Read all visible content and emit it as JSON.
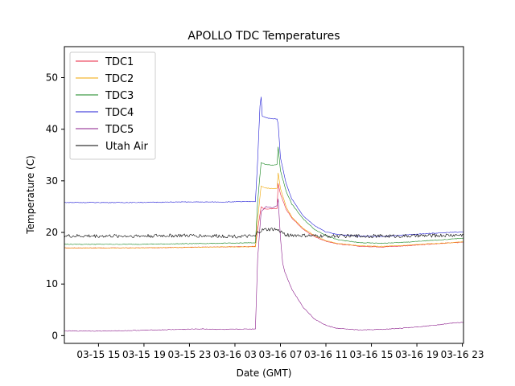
{
  "chart_data": {
    "type": "line",
    "title": "APOLLO TDC Temperatures",
    "xlabel": "Date (GMT)",
    "ylabel": "Temperature (C)",
    "x_unit": "hours since 03-15 12:00 GMT",
    "xlim": [
      0,
      35.1
    ],
    "ylim": [
      -1.5,
      56
    ],
    "xticks": [
      {
        "label": "03-15 15",
        "x": 3
      },
      {
        "label": "03-15 19",
        "x": 7
      },
      {
        "label": "03-15 23",
        "x": 11
      },
      {
        "label": "03-16 03",
        "x": 15
      },
      {
        "label": "03-16 07",
        "x": 19
      },
      {
        "label": "03-16 11",
        "x": 23
      },
      {
        "label": "03-16 15",
        "x": 27
      },
      {
        "label": "03-16 19",
        "x": 31
      },
      {
        "label": "03-16 23",
        "x": 35
      }
    ],
    "yticks": [
      0,
      10,
      20,
      30,
      40,
      50
    ],
    "grid": false,
    "legend_position": "top-left",
    "series": [
      {
        "name": "TDC1",
        "color": "#e8233f",
        "lw": 0.6,
        "points": [
          [
            0,
            17.0
          ],
          [
            6,
            17.0
          ],
          [
            10,
            17.1
          ],
          [
            14,
            17.2
          ],
          [
            16.8,
            17.3
          ],
          [
            17.0,
            20.5
          ],
          [
            17.3,
            25.0
          ],
          [
            17.6,
            24.5
          ],
          [
            18.3,
            24.6
          ],
          [
            18.7,
            24.6
          ],
          [
            18.8,
            29.5
          ],
          [
            19.0,
            27.5
          ],
          [
            19.5,
            24.5
          ],
          [
            20,
            22.8
          ],
          [
            21,
            20.6
          ],
          [
            22,
            19.2
          ],
          [
            23,
            18.3
          ],
          [
            24,
            17.8
          ],
          [
            26,
            17.3
          ],
          [
            28,
            17.2
          ],
          [
            30,
            17.4
          ],
          [
            32,
            17.7
          ],
          [
            34,
            18.0
          ],
          [
            35.1,
            18.1
          ]
        ]
      },
      {
        "name": "TDC2",
        "color": "#f0a500",
        "lw": 0.6,
        "points": [
          [
            0,
            17.0
          ],
          [
            6,
            17.0
          ],
          [
            10,
            17.1
          ],
          [
            14,
            17.2
          ],
          [
            16.8,
            17.2
          ],
          [
            17.0,
            22.5
          ],
          [
            17.3,
            29.0
          ],
          [
            17.7,
            28.6
          ],
          [
            18.3,
            28.5
          ],
          [
            18.7,
            28.6
          ],
          [
            18.8,
            31.5
          ],
          [
            19.0,
            28.5
          ],
          [
            19.5,
            25.0
          ],
          [
            20,
            23.0
          ],
          [
            21,
            20.8
          ],
          [
            22,
            19.4
          ],
          [
            23,
            18.4
          ],
          [
            24,
            17.9
          ],
          [
            26,
            17.4
          ],
          [
            28,
            17.3
          ],
          [
            30,
            17.5
          ],
          [
            32,
            17.8
          ],
          [
            34,
            18.0
          ],
          [
            35.1,
            18.2
          ]
        ]
      },
      {
        "name": "TDC3",
        "color": "#12831b",
        "lw": 0.6,
        "points": [
          [
            0,
            17.7
          ],
          [
            6,
            17.7
          ],
          [
            10,
            17.8
          ],
          [
            14,
            17.9
          ],
          [
            16.8,
            18.0
          ],
          [
            17.0,
            26.0
          ],
          [
            17.3,
            33.5
          ],
          [
            17.7,
            33.2
          ],
          [
            18.3,
            33.0
          ],
          [
            18.7,
            33.2
          ],
          [
            18.8,
            36.5
          ],
          [
            19.0,
            32.0
          ],
          [
            19.5,
            28.0
          ],
          [
            20,
            25.5
          ],
          [
            21,
            22.6
          ],
          [
            22,
            20.6
          ],
          [
            23,
            19.4
          ],
          [
            24,
            18.6
          ],
          [
            26,
            18.0
          ],
          [
            28,
            17.9
          ],
          [
            30,
            18.1
          ],
          [
            32,
            18.4
          ],
          [
            34,
            18.7
          ],
          [
            35.1,
            18.9
          ]
        ]
      },
      {
        "name": "TDC4",
        "color": "#1f1bd6",
        "lw": 0.6,
        "points": [
          [
            0,
            25.8
          ],
          [
            6,
            25.8
          ],
          [
            10,
            25.9
          ],
          [
            14,
            25.9
          ],
          [
            16.8,
            26.0
          ],
          [
            17.0,
            34.0
          ],
          [
            17.2,
            44.5
          ],
          [
            17.3,
            46.3
          ],
          [
            17.4,
            42.5
          ],
          [
            17.8,
            42.2
          ],
          [
            18.3,
            42.0
          ],
          [
            18.7,
            42.0
          ],
          [
            18.8,
            41.0
          ],
          [
            19.0,
            34.5
          ],
          [
            19.5,
            29.5
          ],
          [
            20,
            26.5
          ],
          [
            21,
            23.2
          ],
          [
            22,
            21.3
          ],
          [
            23,
            20.1
          ],
          [
            24,
            19.6
          ],
          [
            26,
            19.3
          ],
          [
            28,
            19.2
          ],
          [
            30,
            19.5
          ],
          [
            32,
            19.8
          ],
          [
            34,
            20.0
          ],
          [
            35.1,
            20.1
          ]
        ]
      },
      {
        "name": "TDC5",
        "color": "#8a1a8a",
        "lw": 0.6,
        "points": [
          [
            0,
            0.9
          ],
          [
            4,
            0.9
          ],
          [
            8,
            1.1
          ],
          [
            12,
            1.3
          ],
          [
            14,
            1.2
          ],
          [
            16.8,
            1.3
          ],
          [
            17.0,
            15.0
          ],
          [
            17.3,
            24.0
          ],
          [
            17.7,
            25.0
          ],
          [
            18.3,
            24.8
          ],
          [
            18.7,
            25.2
          ],
          [
            18.8,
            26.5
          ],
          [
            19.0,
            19.0
          ],
          [
            19.2,
            14.0
          ],
          [
            19.4,
            12.3
          ],
          [
            20,
            9.0
          ],
          [
            21,
            5.5
          ],
          [
            22,
            3.2
          ],
          [
            23,
            2.0
          ],
          [
            24,
            1.4
          ],
          [
            26,
            1.1
          ],
          [
            28,
            1.2
          ],
          [
            30,
            1.5
          ],
          [
            32,
            1.9
          ],
          [
            34,
            2.4
          ],
          [
            35.1,
            2.6
          ]
        ]
      },
      {
        "name": "Utah Air",
        "color": "#000000",
        "lw": 0.6,
        "noise": 0.35,
        "points": [
          [
            0,
            19.3
          ],
          [
            6,
            19.3
          ],
          [
            10,
            19.4
          ],
          [
            14,
            19.3
          ],
          [
            16.8,
            19.2
          ],
          [
            17.0,
            20.0
          ],
          [
            17.5,
            20.5
          ],
          [
            18.5,
            20.6
          ],
          [
            19.0,
            20.2
          ],
          [
            19.5,
            19.5
          ],
          [
            22,
            19.3
          ],
          [
            26,
            19.3
          ],
          [
            30,
            19.3
          ],
          [
            35.1,
            19.5
          ]
        ]
      }
    ]
  }
}
